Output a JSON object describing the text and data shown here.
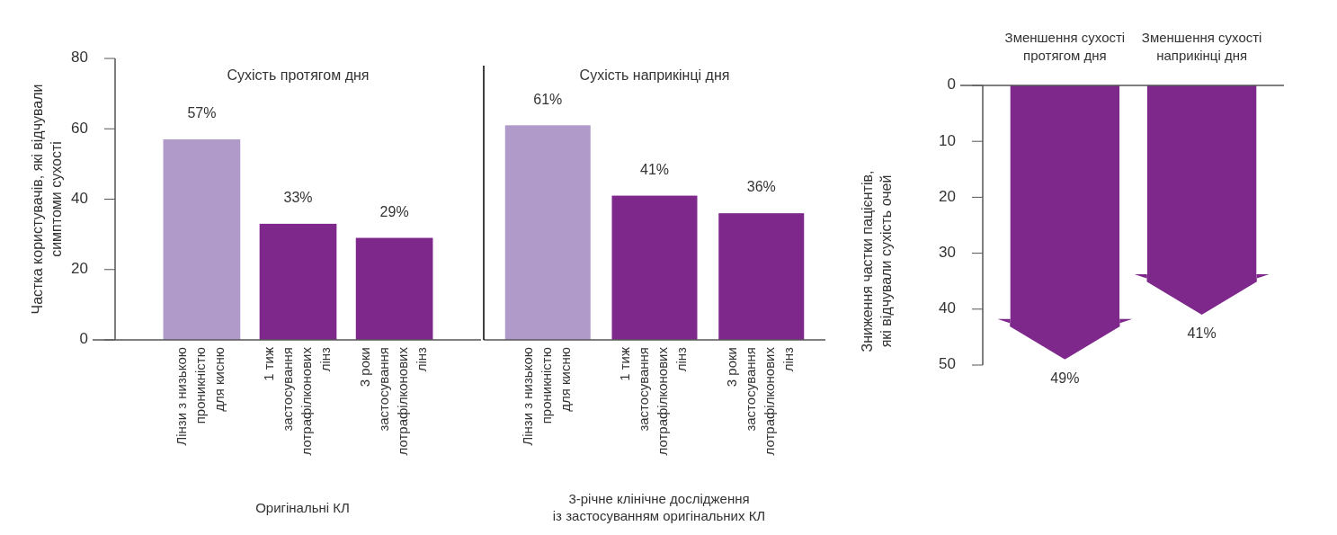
{
  "chart_data": [
    {
      "type": "bar",
      "title": "Сухість протягом дня",
      "ylabel": "Частка користувачів, які відчували\nсимптоми сухості",
      "xlabel": "Оригінальні КЛ",
      "categories": [
        "Лінзи з низькою\nпроникністю\nдля кисню",
        "1 тиж\nзастосування\nлотрафілконових\nлінз",
        "3 роки\nзастосування\nлотрафілконових\nлінз"
      ],
      "values": [
        57,
        33,
        29
      ],
      "colors": [
        "#b09aca",
        "#7e288c",
        "#7e288c"
      ],
      "value_labels": [
        "57%",
        "33%",
        "29%"
      ],
      "ylim": [
        0,
        80
      ],
      "yticks": [
        0,
        20,
        40,
        60,
        80
      ],
      "grid": false
    },
    {
      "type": "bar",
      "title": "Сухість наприкінці дня",
      "xlabel": "3-річне клінічне дослідження\nіз застосуванням оригінальних КЛ",
      "categories": [
        "Лінзи з низькою\nпроникністю\nдля кисню",
        "1 тиж\nзастосування\nлотрафілконових\nлінз",
        "3 роки\nзастосування\nлотрафілконових\nлінз"
      ],
      "values": [
        61,
        41,
        36
      ],
      "colors": [
        "#b09aca",
        "#7e288c",
        "#7e288c"
      ],
      "value_labels": [
        "61%",
        "41%",
        "36%"
      ],
      "ylim": [
        0,
        80
      ],
      "tick_labels": "x",
      "grid": false
    },
    {
      "type": "bar",
      "ylabel": "Зниження частки пацієнтів,\nякі відчували сухість очей",
      "categories": [
        "Зменшення сухості\nпротягом дня",
        "Зменшення сухості\nнаприкінці дня"
      ],
      "values": [
        49,
        41
      ],
      "colors": [
        "#7e288c",
        "#7e288c"
      ],
      "value_labels": [
        "49%",
        "41%"
      ],
      "ylim": [
        50,
        0
      ],
      "yticks": [
        0,
        10,
        20,
        30,
        40,
        50
      ],
      "grid": false
    }
  ]
}
